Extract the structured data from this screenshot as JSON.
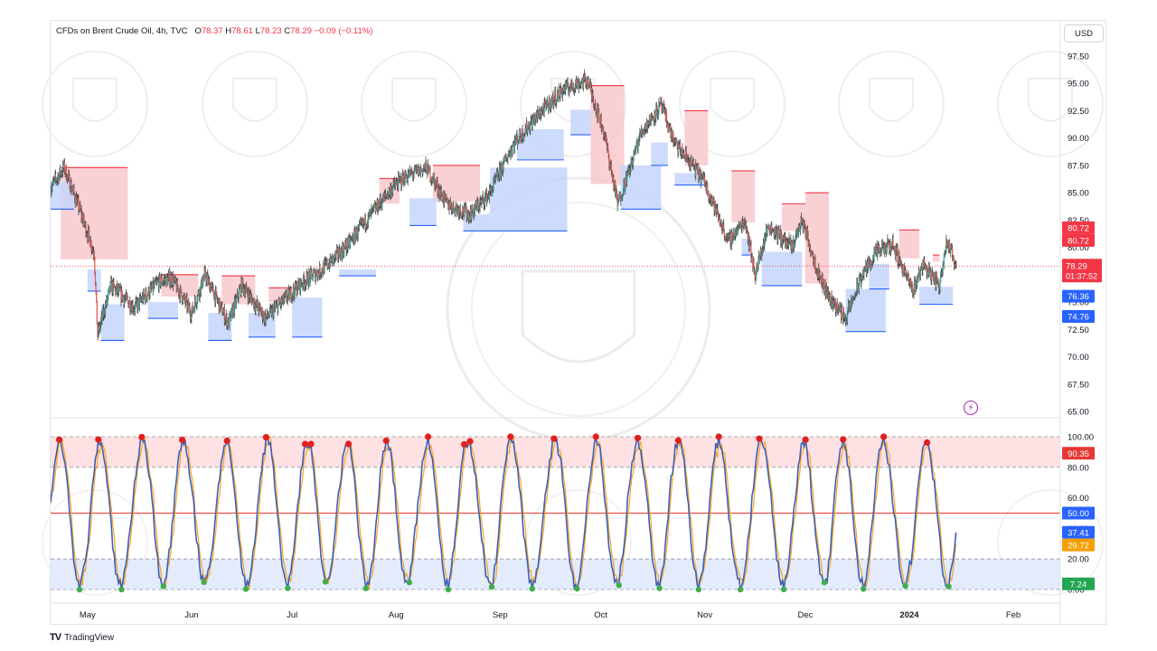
{
  "header": {
    "symbol": "CFDs on Brent Crude Oil, 4h, TVC",
    "o_label": "O",
    "o_value": "78.37",
    "h_label": "H",
    "h_value": "78.61",
    "l_label": "L",
    "l_value": "78.23",
    "c_label": "C",
    "c_value": "78.29",
    "change": "−0.09 (−0.11%)"
  },
  "currency_button": "USD",
  "footer_brand": "TradingView",
  "colors": {
    "up": "#26a69a",
    "down": "#ef5350",
    "candle": "#4a4a4a",
    "resistance": "#f23645",
    "support": "#2962ff",
    "resistance_fill": "#f8c8cc",
    "support_fill": "#c4d6fb",
    "osc_line": "#3f5fb5",
    "osc_signal": "#f5a623",
    "dot_high": "#e0201f",
    "dot_low": "#3fae49"
  },
  "chart_data": [
    {
      "type": "candlestick",
      "title": "CFDs on Brent Crude Oil, 4h, TVC",
      "x_ticks": [
        "May",
        "Jun",
        "Jul",
        "Aug",
        "Sep",
        "Oct",
        "Nov",
        "Dec",
        "2024",
        "Feb"
      ],
      "x_range": [
        "2023-04-20",
        "2024-02-15"
      ],
      "y_ticks": [
        "97.50",
        "95.00",
        "92.50",
        "90.00",
        "87.50",
        "85.00",
        "82.50",
        "80.00",
        "77.50",
        "75.00",
        "72.50",
        "70.00",
        "67.50",
        "65.00"
      ],
      "ylim": [
        65,
        97.5
      ],
      "price_path": [
        [
          "2023-04-20",
          85.5
        ],
        [
          "2023-04-24",
          87.3
        ],
        [
          "2023-04-28",
          84.0
        ],
        [
          "2023-05-03",
          79.5
        ],
        [
          "2023-05-04",
          72.0
        ],
        [
          "2023-05-08",
          76.5
        ],
        [
          "2023-05-15",
          74.5
        ],
        [
          "2023-05-22",
          76.8
        ],
        [
          "2023-05-26",
          77.2
        ],
        [
          "2023-06-01",
          74.0
        ],
        [
          "2023-06-05",
          77.5
        ],
        [
          "2023-06-12",
          73.0
        ],
        [
          "2023-06-16",
          76.6
        ],
        [
          "2023-06-23",
          73.5
        ],
        [
          "2023-06-28",
          75.0
        ],
        [
          "2023-07-04",
          76.8
        ],
        [
          "2023-07-10",
          78.0
        ],
        [
          "2023-07-17",
          80.0
        ],
        [
          "2023-07-24",
          82.8
        ],
        [
          "2023-07-31",
          85.5
        ],
        [
          "2023-08-04",
          86.5
        ],
        [
          "2023-08-10",
          87.3
        ],
        [
          "2023-08-16",
          84.0
        ],
        [
          "2023-08-23",
          83.0
        ],
        [
          "2023-08-29",
          85.0
        ],
        [
          "2023-09-05",
          89.5
        ],
        [
          "2023-09-12",
          92.0
        ],
        [
          "2023-09-20",
          94.5
        ],
        [
          "2023-09-27",
          95.3
        ],
        [
          "2023-10-02",
          90.5
        ],
        [
          "2023-10-06",
          84.0
        ],
        [
          "2023-10-10",
          87.5
        ],
        [
          "2023-10-13",
          90.5
        ],
        [
          "2023-10-19",
          93.0
        ],
        [
          "2023-10-23",
          89.5
        ],
        [
          "2023-10-27",
          88.0
        ],
        [
          "2023-11-01",
          86.0
        ],
        [
          "2023-11-08",
          80.5
        ],
        [
          "2023-11-13",
          82.5
        ],
        [
          "2023-11-16",
          77.5
        ],
        [
          "2023-11-20",
          82.0
        ],
        [
          "2023-11-27",
          80.0
        ],
        [
          "2023-11-30",
          82.5
        ],
        [
          "2023-12-05",
          77.5
        ],
        [
          "2023-12-08",
          75.5
        ],
        [
          "2023-12-13",
          73.5
        ],
        [
          "2023-12-18",
          77.5
        ],
        [
          "2023-12-22",
          79.5
        ],
        [
          "2023-12-27",
          80.3
        ],
        [
          "2024-01-02",
          76.0
        ],
        [
          "2024-01-05",
          78.5
        ],
        [
          "2024-01-10",
          76.5
        ],
        [
          "2024-01-12",
          80.7
        ],
        [
          "2024-01-15",
          78.3
        ]
      ],
      "zones": [
        {
          "kind": "resistance",
          "x": [
            "2023-04-23",
            "2023-05-13"
          ],
          "y": [
            78.9,
            87.3
          ]
        },
        {
          "kind": "resistance",
          "x": [
            "2023-05-23",
            "2023-06-03"
          ],
          "y": [
            75.5,
            77.5
          ]
        },
        {
          "kind": "resistance",
          "x": [
            "2023-06-10",
            "2023-06-20"
          ],
          "y": [
            74.8,
            77.4
          ]
        },
        {
          "kind": "resistance",
          "x": [
            "2023-06-24",
            "2023-07-01"
          ],
          "y": [
            75.0,
            76.3
          ]
        },
        {
          "kind": "resistance",
          "x": [
            "2023-07-27",
            "2023-08-02"
          ],
          "y": [
            84.0,
            86.3
          ]
        },
        {
          "kind": "resistance",
          "x": [
            "2023-08-12",
            "2023-08-26"
          ],
          "y": [
            84.2,
            87.5
          ]
        },
        {
          "kind": "resistance",
          "x": [
            "2023-09-28",
            "2023-10-08"
          ],
          "y": [
            85.8,
            94.8
          ]
        },
        {
          "kind": "resistance",
          "x": [
            "2023-10-26",
            "2023-11-02"
          ],
          "y": [
            87.5,
            92.5
          ]
        },
        {
          "kind": "resistance",
          "x": [
            "2023-11-09",
            "2023-11-16"
          ],
          "y": [
            82.3,
            87.0
          ]
        },
        {
          "kind": "resistance",
          "x": [
            "2023-11-24",
            "2023-12-01"
          ],
          "y": [
            81.5,
            84.0
          ]
        },
        {
          "kind": "resistance",
          "x": [
            "2023-12-01",
            "2023-12-08"
          ],
          "y": [
            76.7,
            85.0
          ]
        },
        {
          "kind": "resistance",
          "x": [
            "2023-12-29",
            "2024-01-04"
          ],
          "y": [
            79.0,
            81.6
          ]
        },
        {
          "kind": "resistance",
          "x": [
            "2024-01-08",
            "2024-01-10"
          ],
          "y": [
            78.7,
            79.3
          ]
        },
        {
          "kind": "support",
          "x": [
            "2023-04-20",
            "2023-04-27"
          ],
          "y": [
            83.5,
            86.0
          ]
        },
        {
          "kind": "support",
          "x": [
            "2023-05-01",
            "2023-05-05"
          ],
          "y": [
            76.0,
            78.0
          ]
        },
        {
          "kind": "support",
          "x": [
            "2023-05-05",
            "2023-05-12"
          ],
          "y": [
            71.5,
            74.8
          ]
        },
        {
          "kind": "support",
          "x": [
            "2023-05-19",
            "2023-05-28"
          ],
          "y": [
            73.5,
            75.0
          ]
        },
        {
          "kind": "support",
          "x": [
            "2023-06-06",
            "2023-06-13"
          ],
          "y": [
            71.5,
            74.0
          ]
        },
        {
          "kind": "support",
          "x": [
            "2023-06-18",
            "2023-06-26"
          ],
          "y": [
            71.8,
            74.0
          ]
        },
        {
          "kind": "support",
          "x": [
            "2023-07-01",
            "2023-07-10"
          ],
          "y": [
            71.8,
            75.4
          ]
        },
        {
          "kind": "support",
          "x": [
            "2023-07-15",
            "2023-07-26"
          ],
          "y": [
            77.4,
            78.0
          ]
        },
        {
          "kind": "support",
          "x": [
            "2023-08-05",
            "2023-08-13"
          ],
          "y": [
            82.0,
            84.5
          ]
        },
        {
          "kind": "support",
          "x": [
            "2023-08-21",
            "2023-08-29"
          ],
          "y": [
            81.5,
            83.0
          ]
        },
        {
          "kind": "support",
          "x": [
            "2023-08-29",
            "2023-09-21"
          ],
          "y": [
            81.5,
            87.3
          ]
        },
        {
          "kind": "support",
          "x": [
            "2023-09-06",
            "2023-09-20"
          ],
          "y": [
            88.0,
            90.8
          ]
        },
        {
          "kind": "support",
          "x": [
            "2023-09-22",
            "2023-09-28"
          ],
          "y": [
            90.3,
            92.6
          ]
        },
        {
          "kind": "support",
          "x": [
            "2023-10-07",
            "2023-10-19"
          ],
          "y": [
            83.5,
            87.5
          ]
        },
        {
          "kind": "support",
          "x": [
            "2023-10-16",
            "2023-10-21"
          ],
          "y": [
            87.5,
            89.6
          ]
        },
        {
          "kind": "support",
          "x": [
            "2023-10-23",
            "2023-11-01"
          ],
          "y": [
            85.7,
            86.8
          ]
        },
        {
          "kind": "support",
          "x": [
            "2023-11-12",
            "2023-11-15"
          ],
          "y": [
            79.3,
            80.8
          ]
        },
        {
          "kind": "support",
          "x": [
            "2023-11-18",
            "2023-11-30"
          ],
          "y": [
            76.5,
            79.6
          ]
        },
        {
          "kind": "support",
          "x": [
            "2023-12-13",
            "2023-12-25"
          ],
          "y": [
            72.3,
            76.2
          ]
        },
        {
          "kind": "support",
          "x": [
            "2023-12-20",
            "2023-12-26"
          ],
          "y": [
            76.2,
            78.5
          ]
        },
        {
          "kind": "support",
          "x": [
            "2024-01-04",
            "2024-01-08"
          ],
          "y": [
            74.8,
            76.4
          ]
        },
        {
          "kind": "support",
          "x": [
            "2024-01-08",
            "2024-01-14"
          ],
          "y": [
            74.8,
            76.4
          ]
        }
      ],
      "last_price": 78.29,
      "price_labels": [
        {
          "text": "80.72",
          "value": 80.72,
          "kind": "resistance"
        },
        {
          "text": "80.72",
          "value": 80.72,
          "kind": "resistance"
        },
        {
          "text": "78.29",
          "value": 78.29,
          "kind": "last"
        },
        {
          "text": "01:37:52",
          "value": 78.29,
          "kind": "countdown"
        },
        {
          "text": "76.36",
          "value": 76.36,
          "kind": "support"
        },
        {
          "text": "74.76",
          "value": 74.76,
          "kind": "support"
        }
      ]
    },
    {
      "type": "line",
      "ylim": [
        0,
        100
      ],
      "y_ticks": [
        "100.00",
        "80.00",
        "60.00",
        "40.00",
        "20.00",
        "0.00"
      ],
      "overbought": 80,
      "oversold": 20,
      "midline": 50,
      "series": [
        {
          "name": "",
          "last": 37.41
        },
        {
          "name": "",
          "last": 29.72
        }
      ],
      "value_labels": [
        {
          "text": "90.35",
          "value": 90.35,
          "kind": "high"
        },
        {
          "text": "50.00",
          "value": 50.0,
          "kind": "mid"
        },
        {
          "text": "37.41",
          "value": 37.41,
          "kind": "main"
        },
        {
          "text": "29.72",
          "value": 29.72,
          "kind": "signal"
        },
        {
          "text": "7.24",
          "value": 7.24,
          "kind": "low"
        }
      ]
    }
  ]
}
